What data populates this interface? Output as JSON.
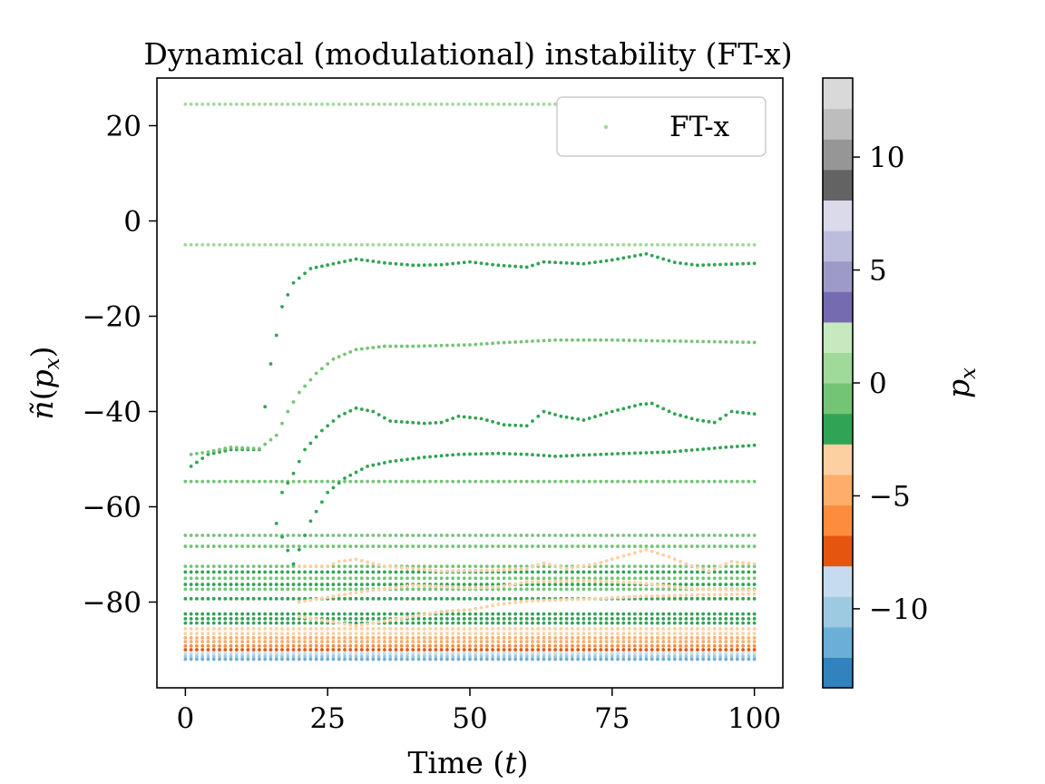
{
  "chart_data": {
    "type": "scatter",
    "title": "Dynamical (modulational) instability (FT-x)",
    "xlabel": "Time (t)",
    "ylabel": "ñ(p_x)",
    "xlim": [
      -5,
      105
    ],
    "ylim": [
      -98,
      30
    ],
    "xticks": [
      0,
      25,
      50,
      75,
      100
    ],
    "xtick_labels": [
      "0",
      "25",
      "50",
      "75",
      "100"
    ],
    "yticks": [
      20,
      0,
      -20,
      -40,
      -60,
      -80
    ],
    "ytick_labels": [
      "20",
      "0",
      "−20",
      "−40",
      "−60",
      "−80"
    ],
    "legend": {
      "label": "FT-x",
      "position": "top-right",
      "marker_color": "#a1d99b"
    },
    "grid": false,
    "colorbar": {
      "label": "p_x",
      "range": [
        -13.5,
        13.5
      ],
      "ticks": [
        10,
        5,
        0,
        -5,
        -10
      ],
      "tick_labels": [
        "10",
        "5",
        "0",
        "−5",
        "−10"
      ],
      "colors": [
        "#3182bd",
        "#6baed6",
        "#9ecae1",
        "#c6dbef",
        "#e6550d",
        "#fd8d3c",
        "#fdae6b",
        "#fdd0a2",
        "#31a354",
        "#74c476",
        "#a1d99b",
        "#c7e9c0",
        "#756bb1",
        "#9e9ac8",
        "#bcbddc",
        "#dadaeb",
        "#636363",
        "#969696",
        "#bdbdbd",
        "#d9d9d9"
      ]
    },
    "x_start": 0,
    "x_end": 100,
    "x_step": 1,
    "flat_series": [
      {
        "color": "#a1d99b",
        "y": 24.5
      },
      {
        "color": "#a1d99b",
        "y": -5
      },
      {
        "color": "#74c476",
        "y": -54.7
      },
      {
        "color": "#74c476",
        "y": -66
      },
      {
        "color": "#74c476",
        "y": -68.3
      },
      {
        "color": "#74c476",
        "y": -72.5
      },
      {
        "color": "#31a354",
        "y": -73.7
      },
      {
        "color": "#74c476",
        "y": -75
      },
      {
        "color": "#31a354",
        "y": -76.3
      },
      {
        "color": "#74c476",
        "y": -77.3
      },
      {
        "color": "#31a354",
        "y": -79.3
      },
      {
        "color": "#31a354",
        "y": -82.5
      },
      {
        "color": "#31a354",
        "y": -83.5
      },
      {
        "color": "#31a354",
        "y": -84.4
      },
      {
        "color": "#fdd0a2",
        "y": -85.6
      },
      {
        "color": "#fdd0a2",
        "y": -86.6
      },
      {
        "color": "#fdae6b",
        "y": -87.5
      },
      {
        "color": "#fdae6b",
        "y": -88.3
      },
      {
        "color": "#fd8d3c",
        "y": -89.2
      },
      {
        "color": "#e6550d",
        "y": -90
      },
      {
        "color": "#c6dbef",
        "y": -90.8
      },
      {
        "color": "#9ecae1",
        "y": -91.4
      },
      {
        "color": "#6baed6",
        "y": -92
      }
    ],
    "growing_series": [
      {
        "color": "#31a354",
        "knots": [
          [
            1,
            -51.5
          ],
          [
            4,
            -49
          ],
          [
            8,
            -48
          ],
          [
            13,
            -48
          ],
          [
            15,
            -30
          ],
          [
            17,
            -18
          ],
          [
            19,
            -13
          ],
          [
            22,
            -10
          ],
          [
            26,
            -9
          ],
          [
            30,
            -8
          ],
          [
            35,
            -8.8
          ],
          [
            40,
            -9.3
          ],
          [
            45,
            -9.2
          ],
          [
            50,
            -8.6
          ],
          [
            55,
            -9.3
          ],
          [
            60,
            -9.7
          ],
          [
            63,
            -8.6
          ],
          [
            70,
            -9.0
          ],
          [
            75,
            -8.2
          ],
          [
            81,
            -6.9
          ],
          [
            86,
            -8.7
          ],
          [
            90,
            -9.3
          ],
          [
            95,
            -9.1
          ],
          [
            100,
            -8.9
          ]
        ]
      },
      {
        "color": "#74c476",
        "knots": [
          [
            1,
            -49
          ],
          [
            4,
            -48.5
          ],
          [
            8,
            -47.5
          ],
          [
            13,
            -47.8
          ],
          [
            16,
            -45
          ],
          [
            18,
            -40
          ],
          [
            20,
            -36
          ],
          [
            23,
            -32
          ],
          [
            26,
            -29
          ],
          [
            30,
            -27
          ],
          [
            35,
            -26.3
          ],
          [
            40,
            -26.3
          ],
          [
            50,
            -26
          ],
          [
            55,
            -25.6
          ],
          [
            65,
            -25
          ],
          [
            75,
            -25
          ],
          [
            85,
            -25.2
          ],
          [
            100,
            -25.5
          ]
        ]
      },
      {
        "color": "#31a354",
        "knots": [
          [
            17,
            -57
          ],
          [
            19,
            -53
          ],
          [
            21,
            -48
          ],
          [
            24,
            -44
          ],
          [
            27,
            -41
          ],
          [
            30,
            -39.3
          ],
          [
            33,
            -40
          ],
          [
            36,
            -42
          ],
          [
            42,
            -42.5
          ],
          [
            45,
            -42.3
          ],
          [
            48,
            -41
          ],
          [
            52,
            -41.5
          ],
          [
            56,
            -42.8
          ],
          [
            60,
            -43
          ],
          [
            63,
            -40
          ],
          [
            66,
            -41
          ],
          [
            70,
            -41.8
          ],
          [
            75,
            -40
          ],
          [
            80,
            -38.5
          ],
          [
            82,
            -38.3
          ],
          [
            86,
            -40.5
          ],
          [
            90,
            -41.8
          ],
          [
            93,
            -42.3
          ],
          [
            96,
            -40
          ],
          [
            100,
            -40.5
          ]
        ]
      },
      {
        "color": "#31a354",
        "knots": [
          [
            16,
            -63.5
          ],
          [
            19,
            -72
          ],
          [
            22,
            -63
          ],
          [
            25,
            -57
          ],
          [
            28,
            -54
          ],
          [
            32,
            -51.5
          ],
          [
            36,
            -50.5
          ],
          [
            42,
            -49.6
          ],
          [
            48,
            -49
          ],
          [
            55,
            -48.8
          ],
          [
            60,
            -49
          ],
          [
            65,
            -49.4
          ],
          [
            75,
            -48.9
          ],
          [
            85,
            -48.5
          ],
          [
            95,
            -47.5
          ],
          [
            100,
            -47.1
          ]
        ]
      },
      {
        "color": "#fdd0a2",
        "knots": [
          [
            20,
            -72.5
          ],
          [
            25,
            -72.5
          ],
          [
            27,
            -71.5
          ],
          [
            30,
            -71
          ],
          [
            35,
            -72.5
          ],
          [
            45,
            -73.5
          ],
          [
            55,
            -73.3
          ],
          [
            60,
            -73
          ],
          [
            63,
            -71.8
          ],
          [
            67,
            -73
          ],
          [
            72,
            -72
          ],
          [
            78,
            -70
          ],
          [
            81,
            -69
          ],
          [
            85,
            -70.5
          ],
          [
            88,
            -72
          ],
          [
            92,
            -73.5
          ],
          [
            96,
            -71.5
          ],
          [
            100,
            -72
          ]
        ]
      },
      {
        "color": "#fdd0a2",
        "knots": [
          [
            20,
            -80
          ],
          [
            30,
            -78
          ],
          [
            40,
            -76.5
          ],
          [
            50,
            -77
          ],
          [
            55,
            -76.8
          ],
          [
            60,
            -75.8
          ],
          [
            70,
            -75.5
          ],
          [
            80,
            -76
          ],
          [
            90,
            -77.3
          ],
          [
            100,
            -77.5
          ]
        ]
      },
      {
        "color": "#fdd0a2",
        "knots": [
          [
            20,
            -83
          ],
          [
            30,
            -85
          ],
          [
            40,
            -83
          ],
          [
            45,
            -82
          ],
          [
            50,
            -81.6
          ],
          [
            55,
            -80.5
          ],
          [
            60,
            -79.8
          ],
          [
            70,
            -79.4
          ],
          [
            80,
            -78.8
          ],
          [
            90,
            -78.5
          ],
          [
            100,
            -78.3
          ]
        ]
      }
    ]
  }
}
